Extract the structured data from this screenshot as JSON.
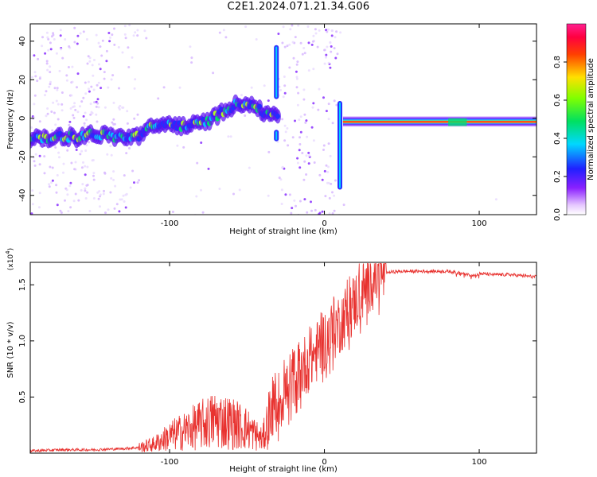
{
  "title": "C2E1.2024.071.21.34.G06",
  "colors": {
    "snr_line": "#e8322f",
    "frame": "#000000",
    "spectrogram_background": "#ffffff"
  },
  "chart_data": [
    {
      "type": "heatmap",
      "title": "C2E1.2024.071.21.34.G06",
      "xlabel": "Height of straight line (km)",
      "ylabel": "Frequency (Hz)",
      "xlim": [
        -190,
        137
      ],
      "ylim": [
        -50,
        49
      ],
      "x_ticks": [
        -100,
        0,
        100
      ],
      "x_tick_labels": [
        "-100",
        "0",
        "100"
      ],
      "y_ticks": [
        -40,
        -20,
        0,
        20,
        40
      ],
      "y_tick_labels": [
        "-40",
        "-20",
        "0",
        "20",
        "40"
      ],
      "colorbar": {
        "label": "Normalized spectral amplitude",
        "range": [
          0,
          1
        ],
        "ticks": [
          0.0,
          0.2,
          0.4,
          0.6,
          0.8
        ],
        "tick_labels": [
          "0.0",
          "0.2",
          "0.4",
          "0.6",
          "0.8"
        ],
        "colormap": "rainbow (white-violet-blue-cyan-green-yellow-red-magenta)"
      },
      "grid": false,
      "ridge": {
        "description": "dominant frequency trace",
        "x": [
          -190,
          -180,
          -170,
          -160,
          -150,
          -140,
          -130,
          -120,
          -110,
          -100,
          -90,
          -80,
          -70,
          -60,
          -50,
          -40,
          -32,
          -28,
          10,
          15,
          20,
          40,
          60,
          80,
          90,
          100,
          120,
          137
        ],
        "frequency": [
          -10,
          -11,
          -9,
          -10,
          -8,
          -9,
          -10,
          -9,
          -4,
          -3,
          -4,
          -3,
          1,
          6,
          9,
          3,
          2,
          3,
          5,
          -2,
          -1,
          -1,
          -1,
          -1,
          -3,
          -2,
          -2,
          -2
        ]
      }
    },
    {
      "type": "line",
      "xlabel": "Height of straight line (km)",
      "ylabel": "SNR (10 * v/v)",
      "y_multiplier": "(x10^4)",
      "xlim": [
        -190,
        137
      ],
      "ylim": [
        0,
        1.7
      ],
      "x_ticks": [
        -100,
        0,
        100
      ],
      "x_tick_labels": [
        "-100",
        "0",
        "100"
      ],
      "y_ticks": [
        0.5,
        1.0,
        1.5
      ],
      "y_tick_labels": [
        "0.5",
        "1.0",
        "1.5"
      ],
      "grid": false,
      "series": [
        {
          "x": [
            -190,
            -170,
            -150,
            -130,
            -120,
            -110,
            -100,
            -90,
            -80,
            -70,
            -60,
            -50,
            -40,
            -35,
            -30,
            -25,
            -20,
            -15,
            -10,
            -5,
            0,
            5,
            10,
            15,
            20,
            25,
            30,
            35,
            40,
            50,
            60,
            80,
            90,
            95,
            100,
            110,
            120,
            137
          ],
          "y": [
            0.02,
            0.03,
            0.03,
            0.04,
            0.05,
            0.08,
            0.15,
            0.2,
            0.25,
            0.3,
            0.27,
            0.22,
            0.12,
            0.35,
            0.45,
            0.55,
            0.68,
            0.75,
            0.82,
            0.9,
            1.0,
            1.08,
            1.16,
            1.25,
            1.35,
            1.45,
            1.53,
            1.58,
            1.61,
            1.62,
            1.62,
            1.62,
            1.6,
            1.58,
            1.6,
            1.59,
            1.59,
            1.57
          ]
        }
      ]
    }
  ]
}
